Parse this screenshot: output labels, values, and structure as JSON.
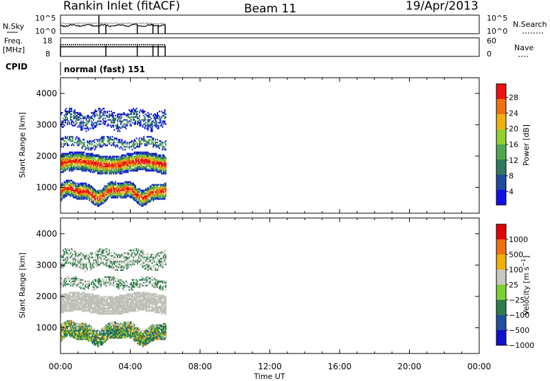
{
  "header": {
    "title": "Rankin Inlet (fitACF)",
    "beam": "Beam 11",
    "date": "19/Apr/2013"
  },
  "panels": {
    "nsky": {
      "label": "N.Sky",
      "ticks": [
        "10^5",
        "10^0"
      ],
      "right_ticks": [
        "10^5",
        "10^0"
      ],
      "right_label": "N.Search"
    },
    "freq": {
      "label_top": "Freq.",
      "label_unit": "[MHz]",
      "ticks": [
        "18",
        "8"
      ],
      "right_ticks": [
        "60",
        "0"
      ],
      "right_label": "Nave"
    },
    "cpid": {
      "label": "CPID",
      "text": "normal (fast) 151"
    }
  },
  "colors": {
    "power_scale": [
      "#1010e6",
      "#1e4aa0",
      "#2f7a5a",
      "#4fa84f",
      "#90d030",
      "#f0b010",
      "#f07010",
      "#f01010"
    ],
    "velocity_scale": [
      "#1010d0",
      "#2050a0",
      "#2e7d4a",
      "#7cd030",
      "#c8c8c0",
      "#f0b000",
      "#f07010",
      "#e80000"
    ],
    "ground_scatter": "#c0c0b8"
  },
  "chart_data": [
    {
      "type": "heatmap",
      "name": "power",
      "xlabel": "Time UT",
      "ylabel": "Slant Range [km]",
      "colorbar_label": "Power [dB]",
      "colorbar_ticks": [
        "28",
        "24",
        "20",
        "16",
        "12",
        "8",
        "4"
      ],
      "xlim_hours": [
        0,
        24
      ],
      "ylim_km": [
        180,
        4500
      ],
      "x_ticks": [
        "00:00",
        "04:00",
        "08:00",
        "12:00",
        "16:00",
        "20:00",
        "00:00"
      ],
      "y_ticks": [
        "1000",
        "2000",
        "3000",
        "4000"
      ],
      "data_time_span_hours": [
        0.0,
        6.0
      ]
    },
    {
      "type": "heatmap",
      "name": "velocity",
      "xlabel": "Time UT",
      "ylabel": "Slant Range [km]",
      "colorbar_label": "Velocity [m s^-1]",
      "colorbar_ticks": [
        "1000",
        "500",
        "100",
        "25",
        "-25",
        "-100",
        "-500",
        "-1000"
      ],
      "xlim_hours": [
        0,
        24
      ],
      "ylim_km": [
        180,
        4500
      ],
      "x_ticks": [
        "00:00",
        "04:00",
        "08:00",
        "12:00",
        "16:00",
        "20:00",
        "00:00"
      ],
      "y_ticks": [
        "1000",
        "2000",
        "3000",
        "4000"
      ],
      "data_time_span_hours": [
        0.0,
        6.0
      ]
    }
  ]
}
